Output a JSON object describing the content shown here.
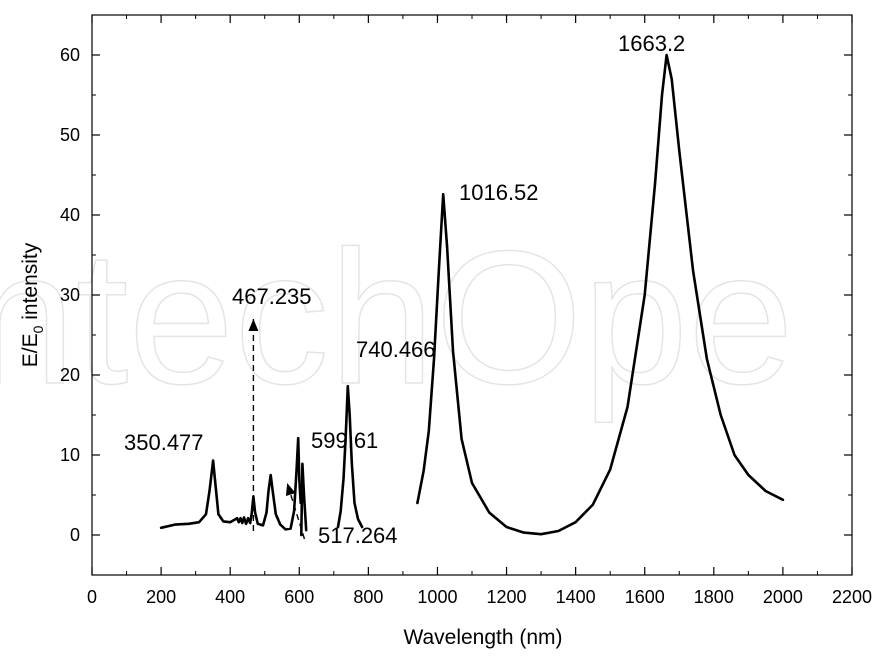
{
  "chart_data": {
    "type": "line",
    "title": "",
    "xlabel": "Wavelength (nm)",
    "ylabel": {
      "main": "E/E",
      "sub": "0",
      "rest": " intensity"
    },
    "xlim": [
      0,
      2200
    ],
    "ylim": [
      -5,
      65
    ],
    "xticks": [
      0,
      200,
      400,
      600,
      800,
      1000,
      1200,
      1400,
      1600,
      1800,
      2000,
      2200
    ],
    "yticks": [
      0,
      10,
      20,
      30,
      40,
      50,
      60
    ],
    "grid": false,
    "legend": "none",
    "line_color": "#000000",
    "watermark": "ntechOpe",
    "series": [
      {
        "segments": [
          [
            [
              200,
              0.9
            ],
            [
              240,
              1.3
            ],
            [
              280,
              1.4
            ],
            [
              310,
              1.6
            ],
            [
              330,
              2.6
            ],
            [
              340,
              5.5
            ],
            [
              350.477,
              9.3
            ],
            [
              358,
              6
            ],
            [
              366,
              2.6
            ],
            [
              380,
              1.7
            ],
            [
              400,
              1.6
            ],
            [
              420,
              2.1
            ],
            [
              425,
              1.6
            ],
            [
              430,
              2.1
            ],
            [
              435,
              1.5
            ],
            [
              440,
              2.2
            ],
            [
              446,
              1.4
            ],
            [
              452,
              2.1
            ],
            [
              458,
              1.5
            ],
            [
              462,
              2.6
            ],
            [
              467.235,
              4.8
            ],
            [
              472,
              2.8
            ],
            [
              480,
              1.4
            ],
            [
              495,
              1.2
            ],
            [
              505,
              2.8
            ],
            [
              511,
              5.5
            ],
            [
              517.264,
              7.5
            ],
            [
              524,
              5.2
            ],
            [
              532,
              2.6
            ],
            [
              545,
              1.3
            ],
            [
              560,
              0.7
            ],
            [
              575,
              0.8
            ],
            [
              585,
              3
            ],
            [
              592,
              8
            ],
            [
              597,
              12.1
            ],
            [
              600,
              7
            ],
            [
              604,
              4
            ]
          ],
          [
            [
              606,
              0
            ],
            [
              609,
              8.9
            ],
            [
              614,
              4.8
            ],
            [
              620,
              0.6
            ]
          ],
          [
            [
              712,
              1
            ],
            [
              720,
              3
            ],
            [
              728,
              7
            ],
            [
              734,
              12
            ],
            [
              740.466,
              18.6
            ],
            [
              746,
              15
            ],
            [
              752,
              9
            ],
            [
              760,
              4
            ],
            [
              770,
              2
            ],
            [
              782,
              1
            ]
          ],
          [
            [
              942,
              4
            ],
            [
              960,
              8
            ],
            [
              975,
              13
            ],
            [
              990,
              22
            ],
            [
              1004,
              33
            ],
            [
              1016.52,
              42.6
            ],
            [
              1028,
              36
            ],
            [
              1045,
              23
            ],
            [
              1070,
              12
            ],
            [
              1100,
              6.5
            ],
            [
              1150,
              2.8
            ],
            [
              1200,
              1
            ],
            [
              1250,
              0.3
            ],
            [
              1300,
              0.1
            ],
            [
              1350,
              0.5
            ],
            [
              1400,
              1.6
            ],
            [
              1450,
              3.8
            ],
            [
              1500,
              8.2
            ],
            [
              1550,
              16
            ],
            [
              1600,
              30
            ],
            [
              1630,
              44
            ],
            [
              1650,
              55
            ],
            [
              1663.2,
              60
            ],
            [
              1678,
              57
            ],
            [
              1700,
              48
            ],
            [
              1740,
              33
            ],
            [
              1780,
              22
            ],
            [
              1820,
              15
            ],
            [
              1860,
              10
            ],
            [
              1900,
              7.5
            ],
            [
              1950,
              5.5
            ],
            [
              2000,
              4.4
            ]
          ]
        ]
      }
    ],
    "annotations": [
      {
        "text": "1663.2",
        "x": 1663.2,
        "y": 60
      },
      {
        "text": "1016.52",
        "x": 1016.52,
        "y": 42.6
      },
      {
        "text": "740.466",
        "x": 740.466,
        "y": 18.6
      },
      {
        "text": "599.61",
        "x": 599.61,
        "y": 12.1
      },
      {
        "text": "467.235",
        "x": 467.235,
        "y": 4.8
      },
      {
        "text": "350.477",
        "x": 350.477,
        "y": 9.3
      },
      {
        "text": "517.264",
        "x": 517.264,
        "y": 7.5
      }
    ],
    "arrows": [
      {
        "label": "467.235",
        "from": [
          467.235,
          0.5
        ],
        "to": [
          467.235,
          27
        ]
      },
      {
        "label": "517.264",
        "from": [
          615,
          -0.5
        ],
        "to": [
          565,
          6.5
        ]
      }
    ]
  }
}
